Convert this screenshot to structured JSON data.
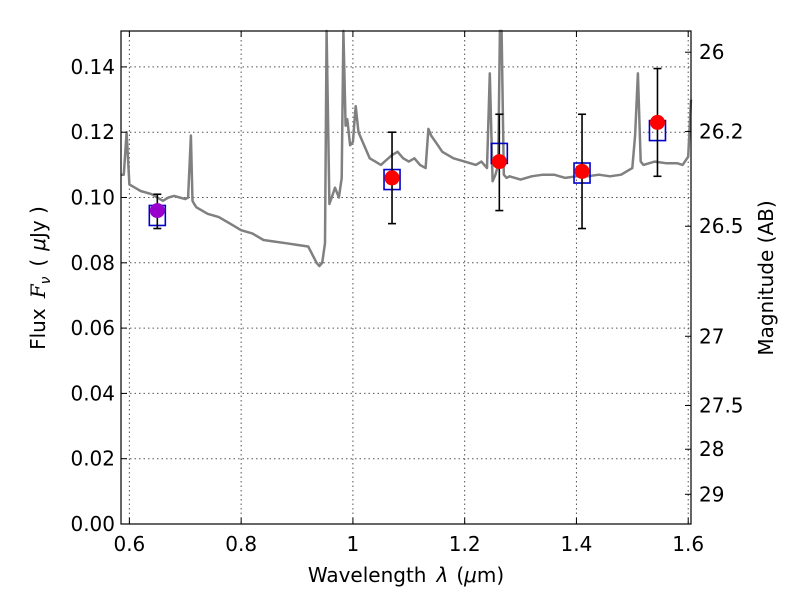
{
  "chart_data": {
    "type": "scatter",
    "xlabel_text": "Wavelength",
    "xlabel_symbol": "λ",
    "xlabel_unit_pre": "(",
    "xlabel_unit_mu": "μ",
    "xlabel_unit_post": "m)",
    "ylabel_text": "Flux",
    "ylabel_symbol": "F",
    "ylabel_sub": "ν",
    "ylabel_unit_pre": "(",
    "ylabel_unit_mu": "μ",
    "ylabel_unit_post": "Jy )",
    "y2label": "Magnitude (AB)",
    "xlim": [
      0.585,
      1.605
    ],
    "ylim": [
      0.0,
      0.151
    ],
    "xticks": [
      0.6,
      0.8,
      1.0,
      1.2,
      1.4,
      1.6
    ],
    "xtick_labels": [
      "0.6",
      "0.8",
      "1",
      "1.2",
      "1.4",
      "1.6"
    ],
    "yticks": [
      0.0,
      0.02,
      0.04,
      0.06,
      0.08,
      0.1,
      0.12,
      0.14
    ],
    "ytick_labels": [
      "0.00",
      "0.02",
      "0.04",
      "0.06",
      "0.08",
      "0.10",
      "0.12",
      "0.14"
    ],
    "y2ticks": [
      {
        "label": "26",
        "flux": 0.1445
      },
      {
        "label": "26.2",
        "flux": 0.1202
      },
      {
        "label": "26.5",
        "flux": 0.0912
      },
      {
        "label": "27",
        "flux": 0.0575
      },
      {
        "label": "27.5",
        "flux": 0.0363
      },
      {
        "label": "28",
        "flux": 0.0229
      },
      {
        "label": "29",
        "flux": 0.0091
      }
    ],
    "grid": true,
    "colors": {
      "model": "#808080",
      "observed": "#ff0000",
      "model_box": "#0000cc",
      "special_point": "#9900cc",
      "errorbar": "#000000"
    },
    "series": [
      {
        "kind": "model_spectrum",
        "x": [
          0.585,
          0.59,
          0.595,
          0.6,
          0.61,
          0.62,
          0.63,
          0.64,
          0.65,
          0.66,
          0.67,
          0.68,
          0.69,
          0.7,
          0.705,
          0.71,
          0.713,
          0.716,
          0.72,
          0.73,
          0.74,
          0.76,
          0.78,
          0.8,
          0.82,
          0.84,
          0.86,
          0.88,
          0.9,
          0.92,
          0.935,
          0.94,
          0.945,
          0.95,
          0.953,
          0.958,
          0.962,
          0.968,
          0.975,
          0.98,
          0.983,
          0.987,
          0.99,
          0.995,
          1.0,
          1.005,
          1.01,
          1.015,
          1.02,
          1.025,
          1.03,
          1.04,
          1.05,
          1.06,
          1.07,
          1.08,
          1.09,
          1.1,
          1.11,
          1.12,
          1.13,
          1.135,
          1.14,
          1.15,
          1.16,
          1.18,
          1.2,
          1.22,
          1.23,
          1.24,
          1.245,
          1.25,
          1.255,
          1.26,
          1.263,
          1.266,
          1.27,
          1.275,
          1.28,
          1.29,
          1.3,
          1.32,
          1.34,
          1.36,
          1.38,
          1.4,
          1.42,
          1.44,
          1.46,
          1.48,
          1.5,
          1.505,
          1.51,
          1.515,
          1.52,
          1.54,
          1.56,
          1.58,
          1.59,
          1.6,
          1.605
        ],
        "y": [
          0.107,
          0.107,
          0.12,
          0.104,
          0.103,
          0.102,
          0.1015,
          0.101,
          0.1,
          0.099,
          0.1,
          0.1005,
          0.1,
          0.0995,
          0.1,
          0.119,
          0.099,
          0.098,
          0.097,
          0.096,
          0.095,
          0.094,
          0.092,
          0.09,
          0.089,
          0.087,
          0.0865,
          0.086,
          0.0855,
          0.085,
          0.08,
          0.079,
          0.08,
          0.086,
          0.155,
          0.098,
          0.1,
          0.103,
          0.1,
          0.106,
          0.155,
          0.122,
          0.124,
          0.116,
          0.117,
          0.128,
          0.12,
          0.118,
          0.116,
          0.114,
          0.112,
          0.111,
          0.11,
          0.1115,
          0.113,
          0.114,
          0.112,
          0.111,
          0.112,
          0.11,
          0.109,
          0.121,
          0.119,
          0.1165,
          0.114,
          0.112,
          0.111,
          0.11,
          0.111,
          0.109,
          0.138,
          0.105,
          0.107,
          0.11,
          0.155,
          0.155,
          0.107,
          0.106,
          0.1065,
          0.106,
          0.1055,
          0.1065,
          0.107,
          0.107,
          0.106,
          0.1065,
          0.1065,
          0.107,
          0.1065,
          0.107,
          0.109,
          0.119,
          0.138,
          0.111,
          0.11,
          0.111,
          0.1105,
          0.1105,
          0.11,
          0.1125,
          0.13
        ]
      },
      {
        "kind": "model_boxes",
        "x": [
          0.65,
          1.07,
          1.262,
          1.41,
          1.545
        ],
        "y": [
          0.0945,
          0.1055,
          0.1135,
          0.1075,
          0.1205
        ]
      },
      {
        "kind": "observed",
        "x": [
          0.65,
          1.07,
          1.262,
          1.41,
          1.545
        ],
        "y": [
          0.096,
          0.106,
          0.111,
          0.108,
          0.123
        ],
        "yerr_low": [
          0.0905,
          0.092,
          0.096,
          0.0905,
          0.1065
        ],
        "yerr_high": [
          0.101,
          0.12,
          0.1255,
          0.1255,
          0.1395
        ],
        "point_colors": [
          "#9900cc",
          "#ff0000",
          "#ff0000",
          "#ff0000",
          "#ff0000"
        ]
      }
    ]
  }
}
